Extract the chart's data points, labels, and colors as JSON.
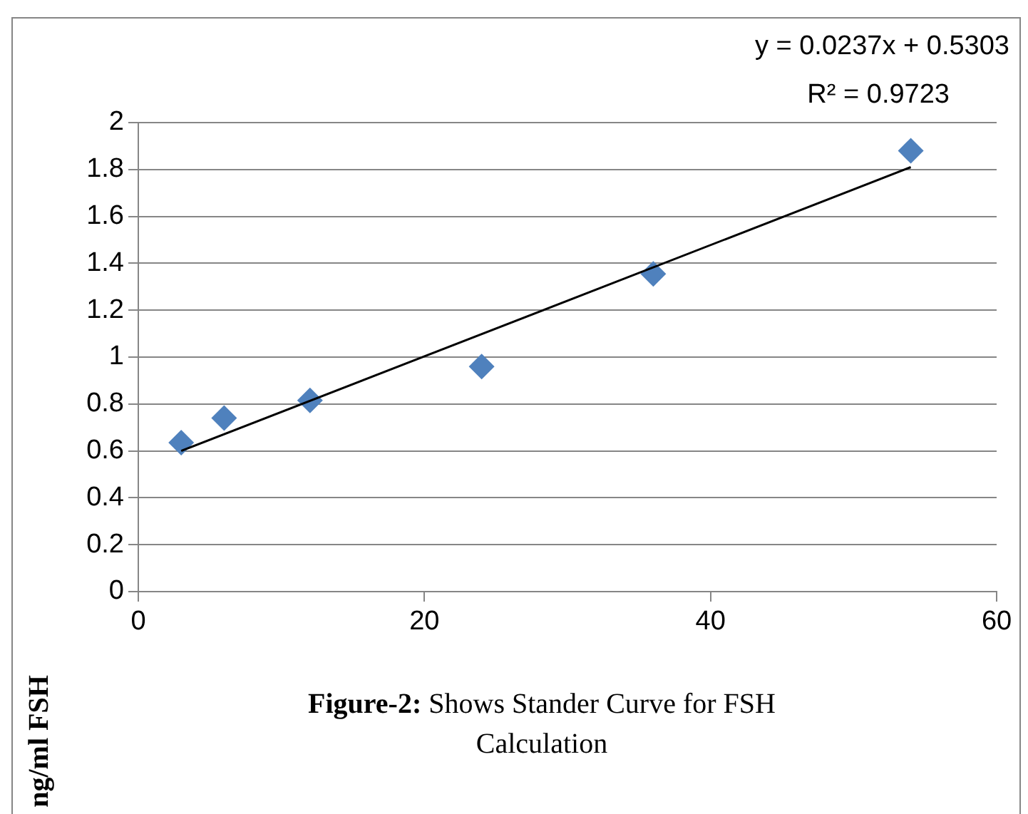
{
  "chart_data": {
    "type": "scatter",
    "ylabel": "ng/ml FSH",
    "annotations": [
      "y = 0.0237x + 0.5303",
      "R² = 0.9723",
      "Figure-2: Shows Stander Curve for FSH Calculation"
    ],
    "xlim": [
      0,
      60
    ],
    "xticks": [
      0,
      20,
      40,
      60
    ],
    "ylim": [
      0,
      2
    ],
    "yticks": [
      0,
      0.2,
      0.4,
      0.6,
      0.8,
      1,
      1.2,
      1.4,
      1.6,
      1.8,
      2
    ],
    "grid": "y",
    "legend": false,
    "series": [
      {
        "type": "scatter",
        "color": "#4f81bd",
        "marker": "diamond",
        "x": [
          3,
          6,
          12,
          24,
          36,
          54
        ],
        "values": [
          0.635,
          0.74,
          0.815,
          0.96,
          1.355,
          1.88
        ]
      },
      {
        "type": "line",
        "color": "#000000",
        "marker": "none",
        "line_style": "solid",
        "x": [
          3,
          54
        ],
        "values": [
          0.6,
          1.81
        ]
      }
    ]
  }
}
